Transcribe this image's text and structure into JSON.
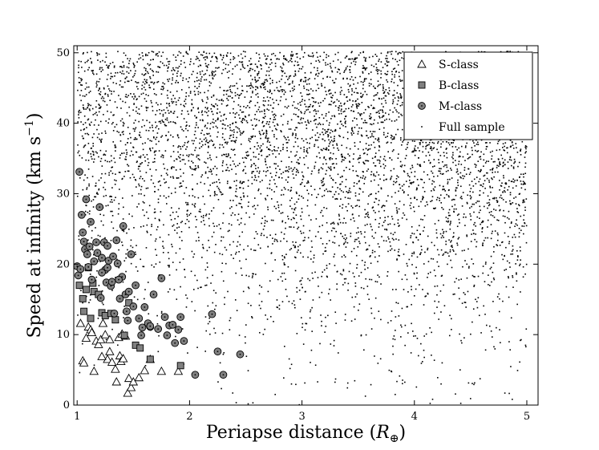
{
  "chart_data": {
    "type": "scatter",
    "title": "",
    "xlabel": "Periapse distance (R⊕)",
    "xlabel_parts": {
      "main": "Periapse distance (",
      "sym": "R",
      "sub": "⊕",
      "close": ")"
    },
    "ylabel": "Speed at infinity (km s⁻¹)",
    "ylabel_parts": {
      "main": "Speed at infinity (km s",
      "sup": "−1",
      "close": ")"
    },
    "xlim": [
      0.97,
      5.1
    ],
    "ylim": [
      0,
      51
    ],
    "xticks": [
      "1",
      "2",
      "3",
      "4",
      "5"
    ],
    "xtick_values": [
      1,
      2,
      3,
      4,
      5
    ],
    "yticks": [
      "0",
      "10",
      "20",
      "30",
      "40",
      "50"
    ],
    "ytick_values": [
      0,
      10,
      20,
      30,
      40,
      50
    ],
    "grid": false,
    "legend_position": "top-right",
    "series": [
      {
        "name": "S-class",
        "marker": "triangle-open",
        "color": "#000000",
        "points": [
          [
            1.03,
            11.6
          ],
          [
            1.05,
            6.3
          ],
          [
            1.06,
            6.0
          ],
          [
            1.08,
            9.5
          ],
          [
            1.1,
            11.1
          ],
          [
            1.12,
            10.7
          ],
          [
            1.13,
            10.3
          ],
          [
            1.15,
            4.8
          ],
          [
            1.17,
            9.1
          ],
          [
            1.19,
            8.6
          ],
          [
            1.21,
            9.3
          ],
          [
            1.23,
            11.6
          ],
          [
            1.25,
            10.0
          ],
          [
            1.27,
            6.5
          ],
          [
            1.29,
            9.3
          ],
          [
            1.31,
            6.1
          ],
          [
            1.34,
            5.1
          ],
          [
            1.35,
            3.3
          ],
          [
            1.37,
            9.6
          ],
          [
            1.38,
            7.0
          ],
          [
            1.39,
            6.2
          ],
          [
            1.4,
            10.1
          ],
          [
            1.41,
            6.6
          ],
          [
            1.43,
            9.8
          ],
          [
            1.45,
            1.7
          ],
          [
            1.46,
            3.8
          ],
          [
            1.48,
            2.5
          ],
          [
            1.5,
            3.3
          ],
          [
            1.55,
            3.9
          ],
          [
            1.6,
            4.9
          ],
          [
            1.65,
            6.5
          ],
          [
            1.75,
            4.8
          ],
          [
            1.9,
            4.8
          ],
          [
            1.29,
            7.6
          ],
          [
            1.22,
            6.9
          ]
        ]
      },
      {
        "name": "B-class",
        "marker": "square",
        "color": "#808080",
        "points": [
          [
            1.02,
            17.0
          ],
          [
            1.05,
            15.1
          ],
          [
            1.06,
            13.3
          ],
          [
            1.08,
            16.4
          ],
          [
            1.1,
            19.5
          ],
          [
            1.12,
            12.3
          ],
          [
            1.14,
            17.3
          ],
          [
            1.15,
            16.1
          ],
          [
            1.19,
            15.7
          ],
          [
            1.22,
            13.1
          ],
          [
            1.25,
            12.7
          ],
          [
            1.3,
            13.0
          ],
          [
            1.34,
            12.1
          ],
          [
            1.42,
            9.9
          ],
          [
            1.46,
            14.5
          ],
          [
            1.52,
            8.5
          ],
          [
            1.56,
            8.1
          ],
          [
            1.65,
            6.5
          ],
          [
            1.92,
            5.6
          ]
        ]
      },
      {
        "name": "M-class",
        "marker": "circle",
        "color": "#808080",
        "points": [
          [
            1.0,
            19.7
          ],
          [
            1.01,
            18.4
          ],
          [
            1.02,
            33.1
          ],
          [
            1.03,
            19.3
          ],
          [
            1.04,
            27.0
          ],
          [
            1.05,
            24.5
          ],
          [
            1.06,
            23.2
          ],
          [
            1.07,
            22.1
          ],
          [
            1.08,
            29.2
          ],
          [
            1.09,
            21.4
          ],
          [
            1.1,
            19.6
          ],
          [
            1.11,
            22.5
          ],
          [
            1.12,
            26.0
          ],
          [
            1.13,
            17.8
          ],
          [
            1.15,
            20.4
          ],
          [
            1.17,
            23.1
          ],
          [
            1.18,
            21.6
          ],
          [
            1.2,
            28.1
          ],
          [
            1.21,
            15.2
          ],
          [
            1.22,
            20.9
          ],
          [
            1.24,
            23.1
          ],
          [
            1.25,
            19.2
          ],
          [
            1.26,
            17.4
          ],
          [
            1.27,
            22.6
          ],
          [
            1.28,
            20.5
          ],
          [
            1.3,
            16.9
          ],
          [
            1.31,
            17.5
          ],
          [
            1.32,
            21.1
          ],
          [
            1.33,
            13.0
          ],
          [
            1.35,
            23.4
          ],
          [
            1.36,
            20.1
          ],
          [
            1.38,
            15.1
          ],
          [
            1.4,
            18.2
          ],
          [
            1.41,
            25.4
          ],
          [
            1.43,
            15.7
          ],
          [
            1.45,
            12.0
          ],
          [
            1.46,
            16.1
          ],
          [
            1.48,
            21.4
          ],
          [
            1.5,
            14.0
          ],
          [
            1.52,
            17.0
          ],
          [
            1.55,
            12.3
          ],
          [
            1.58,
            11.0
          ],
          [
            1.6,
            13.9
          ],
          [
            1.63,
            11.6
          ],
          [
            1.65,
            11.1
          ],
          [
            1.68,
            15.7
          ],
          [
            1.72,
            10.8
          ],
          [
            1.75,
            18.0
          ],
          [
            1.78,
            12.5
          ],
          [
            1.8,
            9.9
          ],
          [
            1.82,
            11.3
          ],
          [
            1.85,
            11.4
          ],
          [
            1.87,
            8.8
          ],
          [
            1.9,
            10.7
          ],
          [
            1.92,
            12.5
          ],
          [
            1.95,
            9.1
          ],
          [
            2.05,
            4.3
          ],
          [
            2.2,
            12.9
          ],
          [
            2.25,
            7.6
          ],
          [
            2.3,
            4.3
          ],
          [
            2.45,
            7.2
          ],
          [
            1.22,
            18.8
          ],
          [
            1.27,
            19.5
          ],
          [
            1.37,
            17.8
          ],
          [
            1.44,
            13.3
          ],
          [
            1.57,
            9.9
          ],
          [
            1.65,
            11.2
          ]
        ]
      },
      {
        "name": "Full sample",
        "marker": "dot",
        "color": "#000000",
        "generator": {
          "count": 5600,
          "seed": 11,
          "x_range": [
            1.0,
            5.0
          ],
          "y_range": [
            0,
            51
          ],
          "description_none": true
        }
      }
    ]
  }
}
